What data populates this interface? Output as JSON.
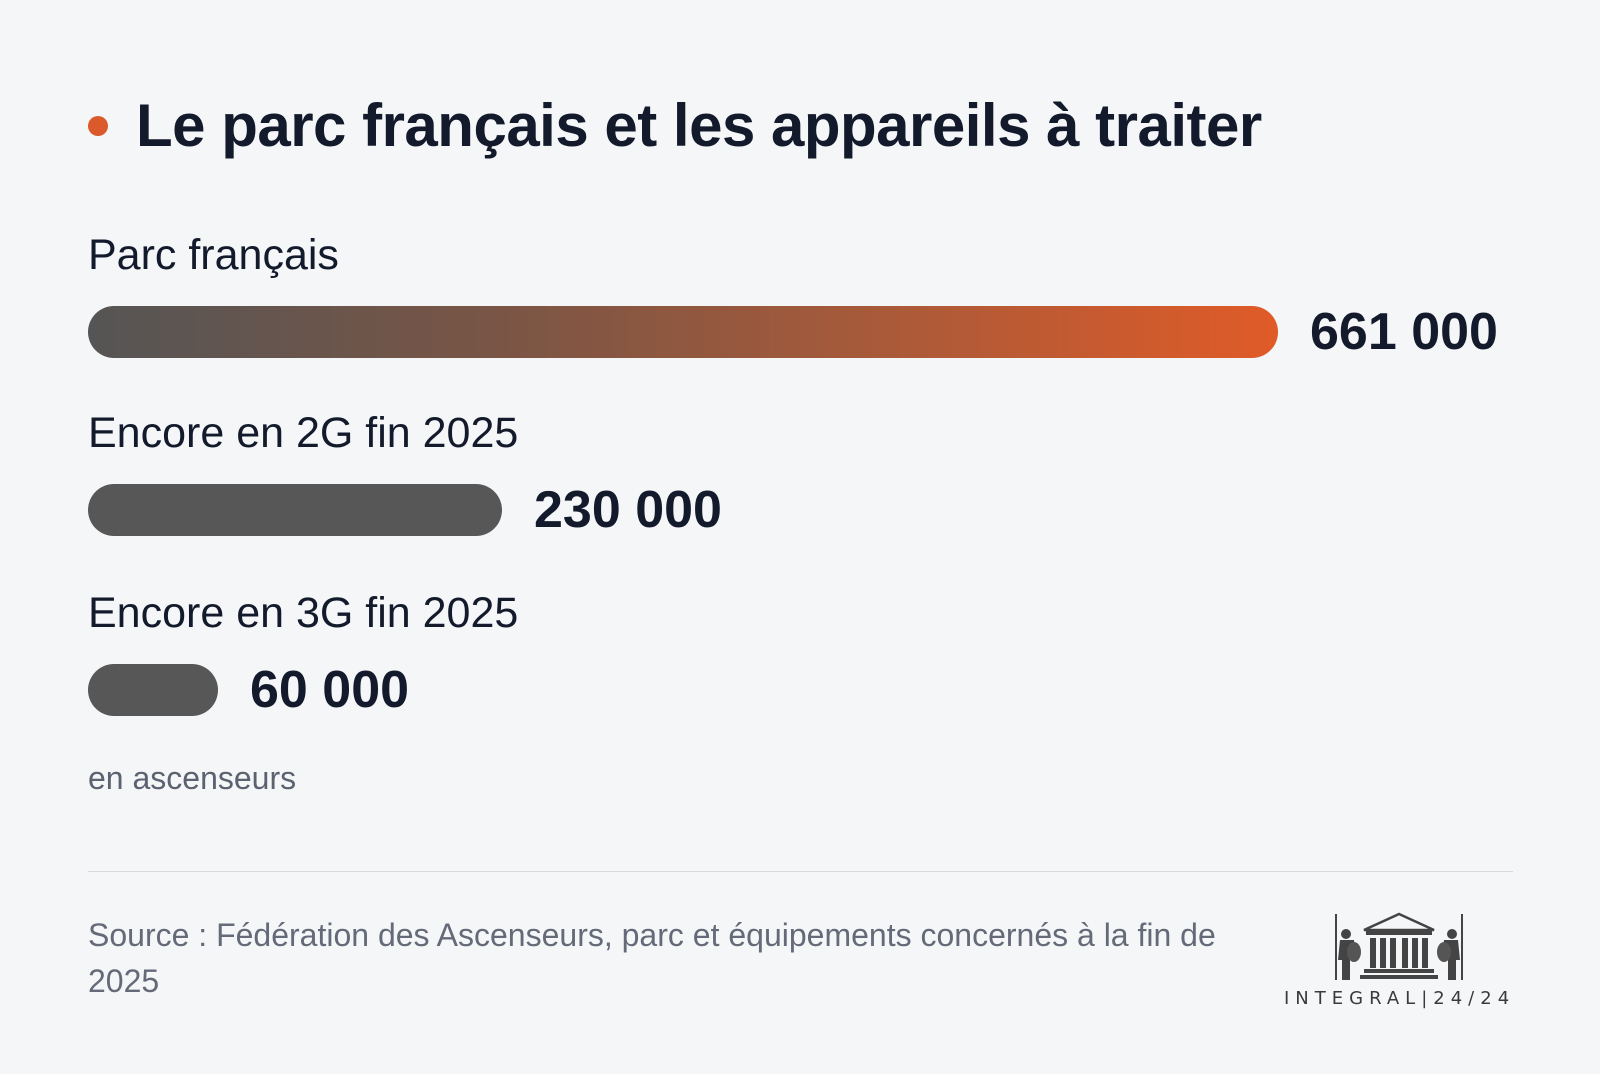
{
  "title": "Le parc français et les appareils à traiter",
  "chart_data": {
    "type": "bar",
    "orientation": "horizontal",
    "categories": [
      "Parc français",
      "Encore en 2G fin 2025",
      "Encore en 3G fin 2025"
    ],
    "values": [
      661000,
      230000,
      60000
    ],
    "value_labels": [
      "661 000",
      "230 000",
      "60 000"
    ],
    "unit_note": "en ascenseurs",
    "highlight_color": "#e05b28",
    "bar_color": "#575757"
  },
  "source": "Source : Fédération des Ascenseurs, parc et équipements concernés à la fin de 2025",
  "logo": {
    "text": "INTEGRAL|24/24",
    "icon": "temple-guardians-icon"
  }
}
